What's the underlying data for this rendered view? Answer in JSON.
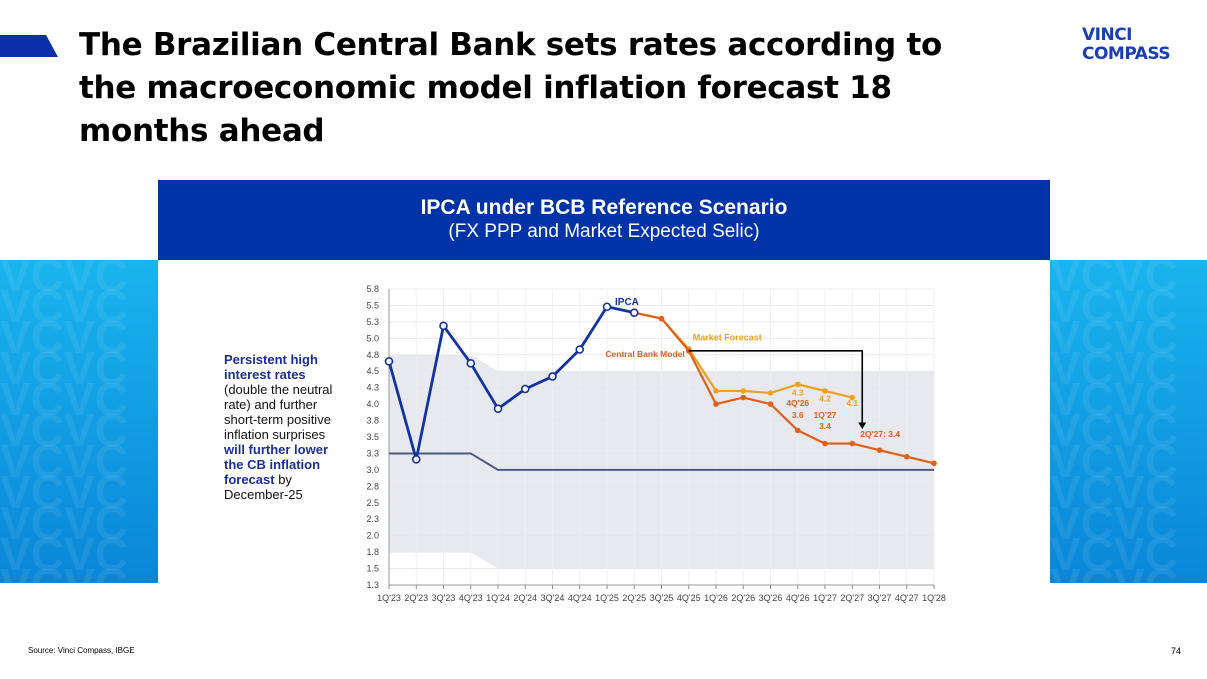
{
  "slide": {
    "title": "The Brazilian Central Bank sets rates according to the macroeconomic model inflation forecast 18 months ahead",
    "logo": [
      "VINCI",
      "COMPASS"
    ],
    "source": "Source: Vinci Compass, IBGE",
    "page_number": "74",
    "watermark": "VCVCVCVCVCVCVCVCVCVCVCVCVCVCVCVCVCVCVCVCVCVCVCVCVCVCVCVCVCVCVC",
    "note": {
      "b1": "Persistent high interest rates",
      "t1": " (double the neutral rate) and further short-term positive inflation surprises ",
      "b2": "will further lower the CB inflation forecast",
      "t2": " by December-25"
    }
  },
  "chart_data": {
    "type": "line",
    "title": "IPCA under BCB Reference Scenario",
    "subtitle": "(FX PPP and Market Expected Selic)",
    "categories": [
      "1Q'23",
      "2Q'23",
      "3Q'23",
      "4Q'23",
      "1Q'24",
      "2Q'24",
      "3Q'24",
      "4Q'24",
      "1Q'25",
      "2Q'25",
      "3Q'25",
      "4Q'25",
      "1Q'26",
      "2Q'26",
      "3Q'26",
      "4Q'26",
      "1Q'27",
      "2Q'27",
      "3Q'27",
      "4Q'27",
      "1Q'28"
    ],
    "yticks": [
      "1.3",
      "1.5",
      "1.8",
      "2.0",
      "2.3",
      "2.5",
      "2.8",
      "3.0",
      "3.3",
      "3.5",
      "3.8",
      "4.0",
      "4.3",
      "4.5",
      "4.8",
      "5.0",
      "5.3",
      "5.5",
      "5.8"
    ],
    "ylim": [
      1.25,
      5.75
    ],
    "series": [
      {
        "name": "IPCA",
        "color": "#1432a0",
        "values": [
          4.65,
          3.16,
          5.19,
          4.62,
          3.93,
          4.23,
          4.42,
          4.83,
          5.48,
          5.39,
          null,
          null,
          null,
          null,
          null,
          null,
          null,
          null,
          null,
          null,
          null
        ]
      },
      {
        "name": "Market Forecast",
        "color": "#f0a020",
        "values": [
          null,
          null,
          null,
          null,
          null,
          null,
          null,
          null,
          null,
          5.39,
          5.3,
          4.84,
          4.2,
          4.2,
          4.17,
          4.3,
          4.2,
          4.1,
          null,
          null,
          null
        ]
      },
      {
        "name": "Central Bank Model",
        "color": "#e0601a",
        "values": [
          null,
          null,
          null,
          null,
          null,
          null,
          null,
          null,
          null,
          5.39,
          5.3,
          4.81,
          4.0,
          4.1,
          4.0,
          3.6,
          3.4,
          3.4,
          3.3,
          3.2,
          3.1
        ]
      }
    ],
    "target": {
      "values": [
        3.25,
        3.25,
        3.25,
        3.25,
        3.0,
        3.0,
        3.0,
        3.0,
        3.0,
        3.0,
        3.0,
        3.0,
        3.0,
        3.0,
        3.0,
        3.0,
        3.0,
        3.0,
        3.0,
        3.0,
        3.0
      ],
      "color": "#4a5a80"
    },
    "tolerance_band": {
      "upper": [
        4.75,
        4.75,
        4.75,
        4.75,
        4.5,
        4.5,
        4.5,
        4.5,
        4.5,
        4.5,
        4.5,
        4.5,
        4.5,
        4.5,
        4.5,
        4.5,
        4.5,
        4.5,
        4.5,
        4.5,
        4.5
      ],
      "lower": [
        1.75,
        1.75,
        1.75,
        1.75,
        1.5,
        1.5,
        1.5,
        1.5,
        1.5,
        1.5,
        1.5,
        1.5,
        1.5,
        1.5,
        1.5,
        1.5,
        1.5,
        1.5,
        1.5,
        1.5,
        1.5
      ]
    },
    "annotations": {
      "ipca": "IPCA",
      "market": "Market Forecast",
      "cb": "Central Bank Model",
      "m4q26": "4.3",
      "m1q27": "4.2",
      "m2q27": "4.1",
      "c4q26": "4Q'26",
      "c4q26v": "3.6",
      "c1q27": "1Q'27",
      "c1q27v": "3.4",
      "c2q27": "2Q'27: 3.4"
    }
  }
}
